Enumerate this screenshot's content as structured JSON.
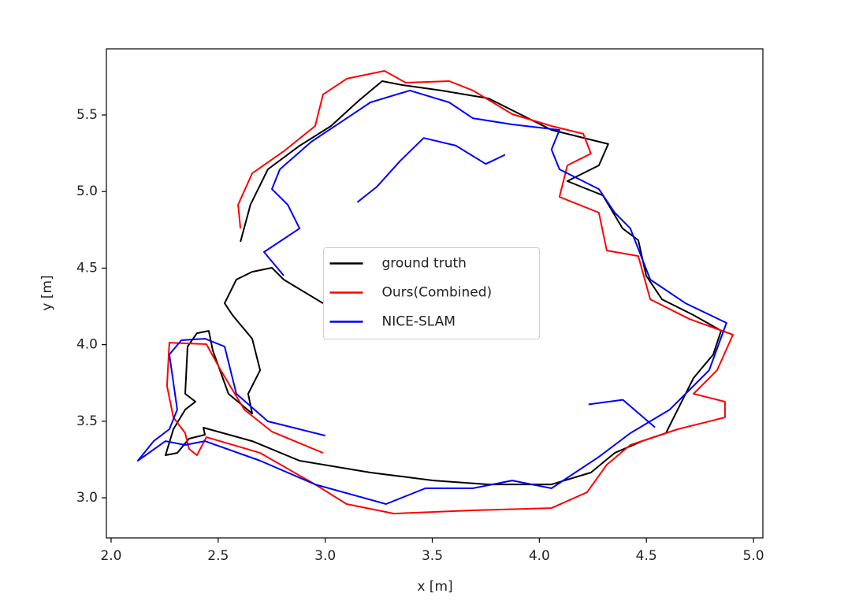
{
  "chart_data": {
    "type": "line",
    "xlabel": "x [m]",
    "ylabel": "y [m]",
    "xlim": [
      1.978,
      5.044
    ],
    "ylim": [
      2.738,
      5.932
    ],
    "xticks": [
      {
        "value": 2.0,
        "label": "2.0"
      },
      2.5,
      {
        "value": 3.0,
        "label": "3.0"
      },
      3.5,
      {
        "value": 4.0,
        "label": "4.0"
      },
      4.5,
      {
        "value": 5.0,
        "label": "5.0"
      }
    ],
    "yticks": [
      {
        "value": 3.0,
        "label": "3.0"
      },
      3.5,
      {
        "value": 4.0,
        "label": "4.0"
      },
      4.5,
      {
        "value": 5.0,
        "label": "5.0"
      },
      5.5
    ],
    "legend": "center",
    "grid": false,
    "series": [
      {
        "name": "ground truth",
        "color": "#000000",
        "x": [
          2.604,
          2.651,
          2.732,
          2.88,
          3.027,
          3.156,
          3.266,
          3.358,
          3.542,
          3.763,
          3.91,
          4.057,
          4.205,
          4.322,
          4.278,
          4.131,
          4.297,
          4.389,
          4.462,
          4.499,
          4.573,
          4.72,
          4.849,
          4.812,
          4.72,
          4.646,
          4.591,
          4.481,
          4.352,
          4.241,
          4.057,
          3.763,
          3.505,
          3.211,
          2.88,
          2.659,
          2.431,
          2.438,
          2.364,
          2.309,
          2.254,
          2.291,
          2.346,
          2.394,
          2.346,
          2.357,
          2.401,
          2.456,
          2.475,
          2.548,
          2.659,
          2.64,
          2.696,
          2.659,
          2.567,
          2.53,
          2.585,
          2.659,
          2.751,
          2.806,
          2.99
        ],
        "values": [
          4.672,
          4.914,
          5.145,
          5.299,
          5.428,
          5.593,
          5.721,
          5.696,
          5.66,
          5.608,
          5.505,
          5.402,
          5.351,
          5.31,
          5.171,
          5.068,
          4.975,
          4.759,
          4.682,
          4.451,
          4.296,
          4.193,
          4.091,
          3.936,
          3.782,
          3.576,
          3.422,
          3.37,
          3.293,
          3.165,
          3.087,
          3.087,
          3.113,
          3.165,
          3.242,
          3.37,
          3.458,
          3.412,
          3.386,
          3.293,
          3.278,
          3.448,
          3.576,
          3.628,
          3.679,
          3.988,
          4.075,
          4.09,
          3.962,
          3.679,
          3.55,
          3.679,
          3.833,
          4.039,
          4.193,
          4.27,
          4.425,
          4.476,
          4.502,
          4.425,
          4.27
        ]
      },
      {
        "name": "Ours(Combined)",
        "color": "#ff0000",
        "x": [
          2.604,
          2.593,
          2.659,
          2.806,
          2.953,
          2.99,
          3.101,
          3.277,
          3.376,
          3.579,
          3.69,
          3.874,
          4.057,
          4.205,
          4.241,
          4.131,
          4.094,
          4.278,
          4.315,
          4.462,
          4.518,
          4.702,
          4.904,
          4.83,
          4.72,
          4.867,
          4.867,
          4.646,
          4.425,
          4.315,
          4.223,
          4.057,
          3.689,
          3.321,
          3.1,
          2.953,
          2.696,
          2.445,
          2.401,
          2.364,
          2.346,
          2.291,
          2.261,
          2.272,
          2.445,
          2.512,
          2.622,
          2.751,
          2.99
        ],
        "values": [
          4.759,
          4.914,
          5.119,
          5.263,
          5.428,
          5.634,
          5.737,
          5.788,
          5.711,
          5.721,
          5.66,
          5.505,
          5.428,
          5.377,
          5.248,
          5.171,
          4.965,
          4.862,
          4.615,
          4.579,
          4.296,
          4.167,
          4.065,
          3.833,
          3.679,
          3.628,
          3.525,
          3.448,
          3.345,
          3.216,
          3.036,
          2.933,
          2.918,
          2.897,
          2.959,
          3.087,
          3.293,
          3.396,
          3.278,
          3.319,
          3.422,
          3.525,
          3.73,
          4.013,
          4.003,
          3.833,
          3.576,
          3.432,
          3.293
        ]
      },
      {
        "name": "NICE-SLAM",
        "color": "#0000ff",
        "x": [
          3.0,
          2.732,
          2.585,
          2.53,
          2.438,
          2.328,
          2.272,
          2.309,
          2.272,
          2.199,
          2.125,
          2.254,
          2.346,
          2.438,
          2.696,
          2.953,
          3.284,
          3.468,
          3.689,
          3.873,
          4.057,
          4.278,
          4.425,
          4.609,
          4.793,
          4.874,
          4.683,
          4.518,
          4.425,
          4.352,
          4.278,
          4.094,
          4.057,
          4.094,
          3.873,
          3.689,
          3.579,
          3.395,
          3.211,
          3.101,
          2.935,
          2.788,
          2.751,
          2.825,
          2.88,
          2.714,
          2.806,
          null,
          3.15,
          3.24,
          3.35,
          3.46,
          3.61,
          3.75,
          3.84,
          null,
          4.23,
          4.39,
          4.54
        ],
        "values": [
          3.406,
          3.499,
          3.679,
          3.988,
          4.039,
          4.029,
          3.936,
          3.576,
          3.448,
          3.37,
          3.242,
          3.37,
          3.345,
          3.37,
          3.242,
          3.087,
          2.959,
          3.062,
          3.062,
          3.113,
          3.062,
          3.267,
          3.422,
          3.576,
          3.833,
          4.142,
          4.27,
          4.425,
          4.759,
          4.862,
          5.016,
          5.145,
          5.274,
          5.402,
          5.438,
          5.479,
          5.582,
          5.66,
          5.582,
          5.479,
          5.325,
          5.145,
          5.016,
          4.914,
          4.759,
          4.605,
          4.451,
          null,
          4.93,
          5.03,
          5.2,
          5.35,
          5.3,
          5.18,
          5.24,
          null,
          3.61,
          3.64,
          3.46
        ]
      }
    ]
  }
}
